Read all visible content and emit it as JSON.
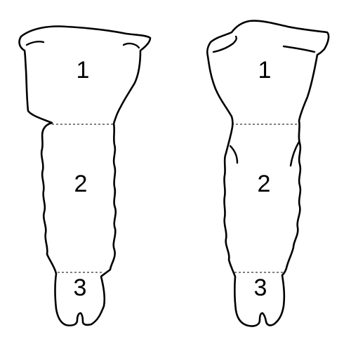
{
  "figures": [
    {
      "regions": [
        {
          "label": "1"
        },
        {
          "label": "2"
        },
        {
          "label": "3"
        }
      ]
    },
    {
      "regions": [
        {
          "label": "1"
        },
        {
          "label": "2"
        },
        {
          "label": "3"
        }
      ]
    }
  ]
}
